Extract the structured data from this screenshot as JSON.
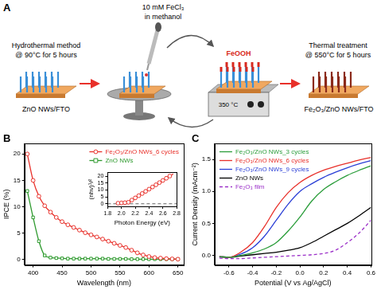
{
  "diagram": {
    "panel": "A",
    "precursor": [
      "10 mM FeCl₃",
      "in methanol"
    ],
    "steps": [
      {
        "lines": [
          "Hydrothermal method",
          "@ 90°C for 5 hours"
        ],
        "sample": "ZnO NWs/FTO"
      },
      {
        "lines": [
          "Thermal treatment",
          "@ 550°C for 5 hours"
        ],
        "sample": "Fe₂O₃/ZnO NWs/FTO"
      }
    ],
    "coating": "FeOOH",
    "hotplate": "350 °C"
  },
  "chart_data": [
    {
      "panel": "B",
      "type": "line",
      "x_label": "Wavelength (nm)",
      "y_label": "IPCE (%)",
      "x": [
        390,
        400,
        410,
        420,
        430,
        440,
        450,
        460,
        470,
        480,
        490,
        500,
        510,
        520,
        530,
        540,
        550,
        560,
        570,
        580,
        590,
        600,
        610,
        620,
        630,
        640,
        650
      ],
      "series": [
        {
          "name": "Fe₂O₃/ZnO NWs_6 cycles",
          "color": "#e8302a",
          "marker": "circle",
          "line_style": "solid",
          "values": [
            20,
            15,
            12,
            10.2,
            9,
            8,
            7.2,
            6.6,
            6.1,
            5.6,
            5.1,
            4.7,
            4.3,
            3.9,
            3.5,
            3.1,
            2.7,
            2.3,
            1.8,
            1.3,
            0.9,
            0.6,
            0.4,
            0.3,
            0.2,
            0.15,
            0.1
          ]
        },
        {
          "name": "ZnO NWs",
          "color": "#2e9a2e",
          "marker": "square",
          "line_style": "solid",
          "values": [
            13,
            8,
            3.5,
            0.8,
            0.4,
            0.3,
            0.25,
            0.2,
            0.2,
            0.2,
            0.2,
            0.2,
            0.2,
            0.2,
            0.15,
            0.15,
            0.15,
            0.15,
            0.1,
            0.1,
            0.1,
            0.1,
            0.1,
            0.1,
            0.1,
            0.1,
            0.1
          ]
        }
      ],
      "xlim": [
        385,
        660
      ],
      "xticks": [
        400,
        450,
        500,
        550,
        600,
        650
      ],
      "ylim": [
        -1,
        22
      ],
      "yticks": [
        0,
        5,
        10,
        15,
        20
      ],
      "grid": false,
      "legend": "upper right",
      "inset": {
        "type": "scatter",
        "x_label": "Photon Energy (eV)",
        "y_label": "(nhν)¹/²",
        "series": [
          {
            "color": "#e8302a",
            "marker": "circle",
            "line_style": "none",
            "x": [
              1.95,
              2.0,
              2.05,
              2.1,
              2.15,
              2.2,
              2.25,
              2.3,
              2.35,
              2.4,
              2.45,
              2.5,
              2.55,
              2.6,
              2.65,
              2.7
            ],
            "values": [
              0.3,
              0.5,
              0.7,
              1.0,
              2.6,
              4.2,
              5.8,
              7.4,
              9.0,
              10.6,
              12.2,
              13.8,
              15.4,
              17.0,
              18.6,
              20.2
            ]
          },
          {
            "color": "#e8302a",
            "marker": "none",
            "line_style": "solid",
            "x": [
              2.07,
              2.75
            ],
            "values": [
              0,
              21.8
            ]
          },
          {
            "color": "#888888",
            "marker": "none",
            "line_style": "dashed",
            "x": [
              1.8,
              2.8
            ],
            "values": [
              0,
              0
            ]
          }
        ],
        "xlim": [
          1.8,
          2.8
        ],
        "xticks": [
          1.8,
          {
            "value": 2,
            "label": "2.0"
          },
          2.2,
          2.4,
          2.6,
          2.8
        ],
        "ylim": [
          -2,
          23
        ],
        "yticks": [
          0,
          5,
          10,
          15,
          20
        ],
        "grid": false
      }
    },
    {
      "panel": "C",
      "type": "line",
      "x_label": "Potential (V vs Ag/AgCl)",
      "y_label": "Current Density (mAcm⁻²)",
      "x": [
        -0.68,
        -0.6,
        -0.5,
        -0.4,
        -0.3,
        -0.2,
        -0.1,
        0,
        0.1,
        0.2,
        0.3,
        0.4,
        0.5,
        0.6
      ],
      "series": [
        {
          "name": "Fe₂O₃/ZnO NWs_3 cycles",
          "color": "#2a9d3a",
          "marker": "none",
          "line_style": "solid",
          "values": [
            -0.02,
            -0.03,
            0,
            0.04,
            0.1,
            0.2,
            0.38,
            0.6,
            0.85,
            1.03,
            1.15,
            1.25,
            1.33,
            1.4
          ]
        },
        {
          "name": "Fe₂O₃/ZnO NWs_6 cycles",
          "color": "#e8302a",
          "marker": "none",
          "line_style": "solid",
          "values": [
            -0.02,
            -0.03,
            0.05,
            0.2,
            0.45,
            0.75,
            0.98,
            1.14,
            1.25,
            1.33,
            1.39,
            1.44,
            1.49,
            1.53
          ]
        },
        {
          "name": "Fe₂O₃/ZnO NWs_9 cycles",
          "color": "#2b3fd6",
          "marker": "none",
          "line_style": "solid",
          "values": [
            -0.02,
            -0.03,
            0.02,
            0.12,
            0.3,
            0.55,
            0.8,
            1.0,
            1.12,
            1.22,
            1.3,
            1.37,
            1.43,
            1.48
          ]
        },
        {
          "name": "ZnO NWs",
          "color": "#000000",
          "marker": "none",
          "line_style": "solid",
          "values": [
            -0.02,
            -0.03,
            -0.01,
            0.01,
            0.03,
            0.05,
            0.08,
            0.12,
            0.2,
            0.3,
            0.4,
            0.5,
            0.62,
            0.75
          ]
        },
        {
          "name": "Fe₂O₃ film",
          "color": "#9b30c8",
          "marker": "none",
          "line_style": "dashed",
          "values": [
            -0.04,
            -0.05,
            -0.05,
            -0.04,
            -0.03,
            -0.02,
            -0.01,
            0,
            0.01,
            0.03,
            0.08,
            0.2,
            0.35,
            0.55
          ]
        }
      ],
      "xlim": [
        -0.72,
        0.6
      ],
      "xticks": [
        -0.6,
        -0.4,
        -0.2,
        {
          "value": 0,
          "label": "0.0"
        },
        0.2,
        0.4,
        0.6
      ],
      "ylim": [
        -0.15,
        1.75
      ],
      "yticks": [
        {
          "value": 0,
          "label": "0.0"
        },
        0.5,
        {
          "value": 1,
          "label": "1.0"
        },
        1.5
      ],
      "grid": false,
      "legend": "upper left"
    }
  ]
}
